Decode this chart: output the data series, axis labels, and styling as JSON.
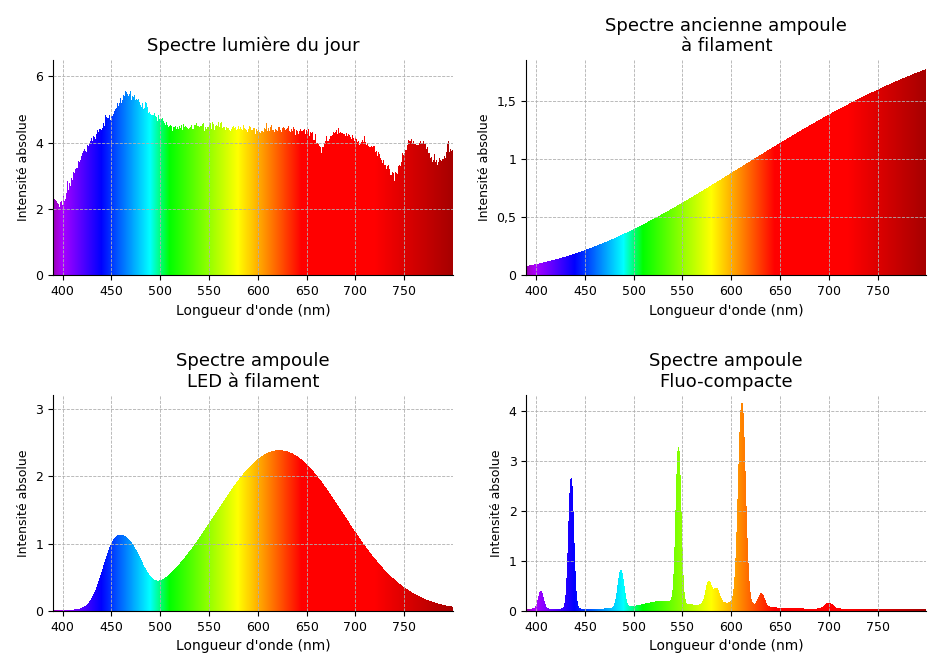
{
  "plots": [
    {
      "title": "Spectre lumière du jour",
      "xlabel": "Longueur d'onde (nm)",
      "ylabel": "Intensité absolue",
      "xlim": [
        390,
        800
      ],
      "ylim": [
        0,
        6.5
      ],
      "yticks": [
        0,
        2,
        4,
        6
      ],
      "xticks": [
        400,
        450,
        500,
        550,
        600,
        650,
        700,
        750
      ],
      "type": "daylight"
    },
    {
      "title": "Spectre ancienne ampoule\nà filament",
      "xlabel": "Longueur d'onde (nm)",
      "ylabel": "Intensité absolue",
      "xlim": [
        390,
        800
      ],
      "ylim": [
        0,
        1.85
      ],
      "yticks": [
        0,
        0.5,
        1,
        1.5
      ],
      "xticks": [
        400,
        450,
        500,
        550,
        600,
        650,
        700,
        750
      ],
      "type": "incandescent"
    },
    {
      "title": "Spectre ampoule\nLED à filament",
      "xlabel": "Longueur d'onde (nm)",
      "ylabel": "Intensité absolue",
      "xlim": [
        390,
        800
      ],
      "ylim": [
        0,
        3.2
      ],
      "yticks": [
        0,
        1,
        2,
        3
      ],
      "xticks": [
        400,
        450,
        500,
        550,
        600,
        650,
        700,
        750
      ],
      "type": "led_filament"
    },
    {
      "title": "Spectre ampoule\nFluo-compacte",
      "xlabel": "Longueur d'onde (nm)",
      "ylabel": "Intensité absolue",
      "xlim": [
        390,
        800
      ],
      "ylim": [
        0,
        4.3
      ],
      "yticks": [
        0,
        1,
        2,
        3,
        4
      ],
      "xticks": [
        400,
        450,
        500,
        550,
        600,
        650,
        700,
        750
      ],
      "type": "fluorescent"
    }
  ]
}
